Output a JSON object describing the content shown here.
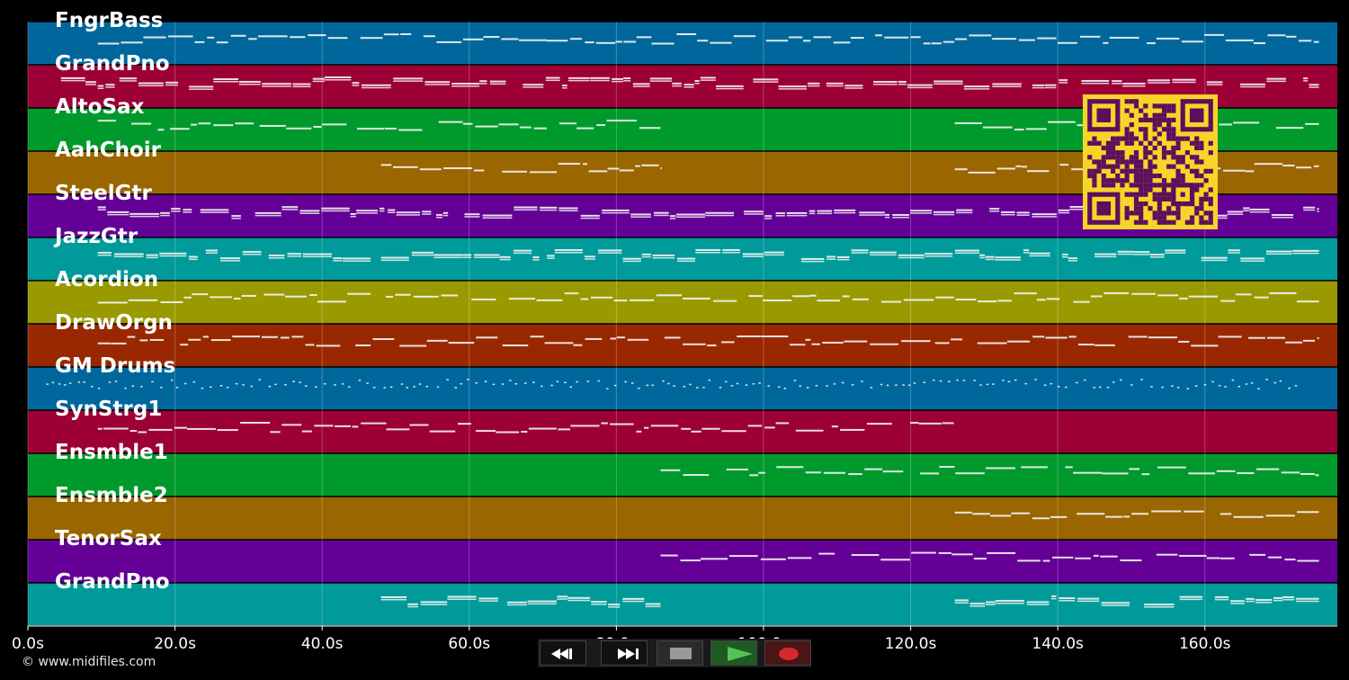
{
  "copyright": "© www.midifiles.com",
  "colors": {
    "background": "#000000",
    "track_palette": [
      "#00679c",
      "#9c0036",
      "#009a2c",
      "#996600",
      "#640096",
      "#009a9a",
      "#9a9a00",
      "#992800"
    ],
    "note": "#f2f2f2",
    "qr_bg": "#f5d529",
    "qr_fg": "#5b0f5c"
  },
  "tracks": [
    {
      "name": "FngrBass",
      "color": "#00679c"
    },
    {
      "name": "GrandPno",
      "color": "#9c0036"
    },
    {
      "name": "AltoSax",
      "color": "#009a2c"
    },
    {
      "name": "AahChoir",
      "color": "#996600"
    },
    {
      "name": "SteelGtr",
      "color": "#640096"
    },
    {
      "name": "JazzGtr",
      "color": "#009a9a"
    },
    {
      "name": "Acordion",
      "color": "#9a9a00"
    },
    {
      "name": "DrawOrgn",
      "color": "#992800"
    },
    {
      "name": "GM Drums",
      "color": "#00679c"
    },
    {
      "name": "SynStrg1",
      "color": "#9c0036"
    },
    {
      "name": "Ensmble1",
      "color": "#009a2c"
    },
    {
      "name": "Ensmble2",
      "color": "#996600"
    },
    {
      "name": "TenorSax",
      "color": "#640096"
    },
    {
      "name": "GrandPno",
      "color": "#009a9a"
    }
  ],
  "timeline": {
    "unit": "s",
    "min": 0,
    "max": 178,
    "ticks": [
      {
        "value": 0,
        "label": "0.0s"
      },
      {
        "value": 20,
        "label": "20.0s"
      },
      {
        "value": 40,
        "label": "40.0s"
      },
      {
        "value": 60,
        "label": "60.0s"
      },
      {
        "value": 80,
        "label": "80.0s"
      },
      {
        "value": 100,
        "label": "100.0s"
      },
      {
        "value": 120,
        "label": "120.0s"
      },
      {
        "value": 140,
        "label": "140.0s"
      },
      {
        "value": 160,
        "label": "160.0s"
      }
    ]
  },
  "track_activity": [
    [
      [
        9.5,
        175.5
      ]
    ],
    [
      [
        4.5,
        175.5
      ]
    ],
    [
      [
        9.5,
        86
      ],
      [
        126,
        175.5
      ]
    ],
    [
      [
        48,
        86
      ],
      [
        126,
        175.5
      ]
    ],
    [
      [
        9.5,
        175.5
      ]
    ],
    [
      [
        9.5,
        175.5
      ]
    ],
    [
      [
        9.5,
        175.5
      ]
    ],
    [
      [
        9.5,
        175.5
      ]
    ],
    [
      [
        2.5,
        173
      ]
    ],
    [
      [
        9.5,
        126
      ]
    ],
    [
      [
        86,
        175.5
      ]
    ],
    [
      [
        126,
        175.5
      ]
    ],
    [
      [
        86,
        175.5
      ]
    ],
    [
      [
        48,
        86
      ],
      [
        126,
        175.5
      ]
    ]
  ],
  "transport": {
    "rewind": "rewind-icon",
    "fast_forward": "fast-forward-icon",
    "stop": "stop-icon",
    "play": "play-icon",
    "record": "record-icon"
  },
  "qr_code": "qr-code"
}
